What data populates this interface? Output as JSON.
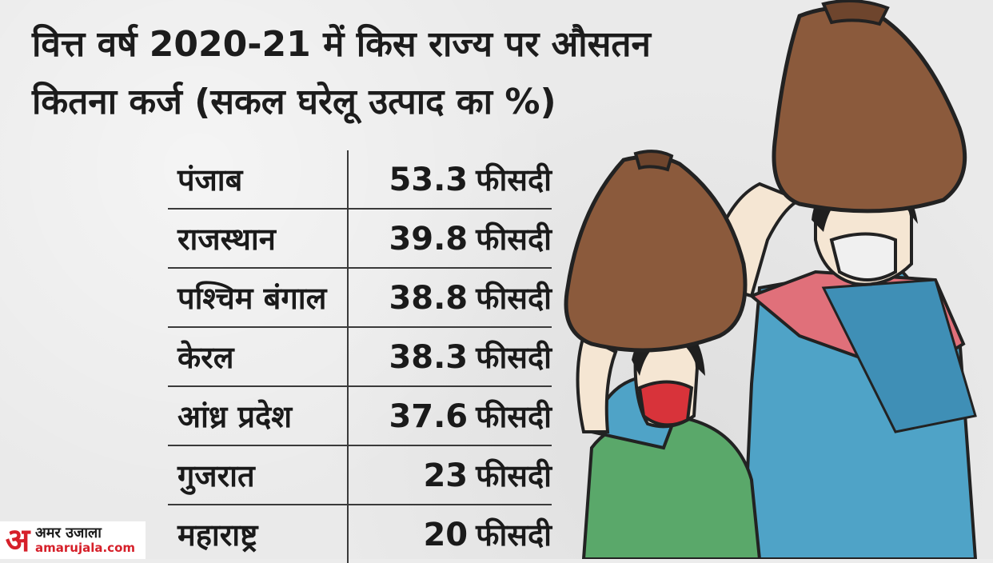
{
  "title_lines": [
    "वित्त वर्ष 2020-21 में किस राज्य पर औसतन",
    "कितना कर्ज (सकल घरेलू उत्पाद का %)"
  ],
  "chart_data": {
    "type": "table",
    "title": "वित्त वर्ष 2020-21 में किस राज्य पर औसतन कितना कर्ज (सकल घरेलू उत्पाद का %)",
    "unit": "फीसदी",
    "rows": [
      {
        "state": "पंजाब",
        "value": "53.3"
      },
      {
        "state": "राजस्थान",
        "value": "39.8"
      },
      {
        "state": "पश्चिम बंगाल",
        "value": "38.8"
      },
      {
        "state": "केरल",
        "value": "38.3"
      },
      {
        "state": "आंध्र प्रदेश",
        "value": "37.6"
      },
      {
        "state": "गुजरात",
        "value": "23"
      },
      {
        "state": "महाराष्ट्र",
        "value": "20"
      }
    ]
  },
  "logo": {
    "mark": "अ",
    "name": "अमर उजाला",
    "site": "amarujala.com",
    "brand_color": "#d6202a"
  },
  "illustration": {
    "description_icon": "women-carrying-sacks-illustration"
  }
}
